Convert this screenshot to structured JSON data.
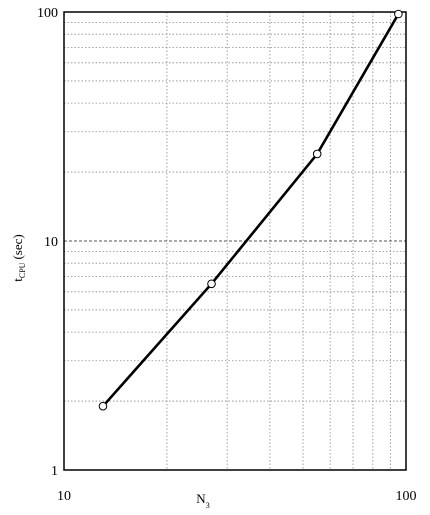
{
  "chart_data": {
    "type": "line",
    "title": "",
    "xlabel": "N₃",
    "ylabel": "t_CPU (sec)",
    "ylabel_main": "t",
    "ylabel_sub": "CPU",
    "ylabel_unit": "(sec)",
    "xlabel_main": "N",
    "xlabel_sub": "3",
    "xscale": "log",
    "yscale": "log",
    "xlim": [
      10,
      100
    ],
    "ylim": [
      1,
      100
    ],
    "grid": true,
    "x_ticks": [
      "10",
      "100"
    ],
    "y_ticks": [
      "1",
      "10",
      "100"
    ],
    "series": [
      {
        "marker": "circle",
        "x": [
          13,
          27,
          55,
          95
        ],
        "y": [
          1.9,
          6.5,
          24,
          98
        ]
      }
    ]
  }
}
